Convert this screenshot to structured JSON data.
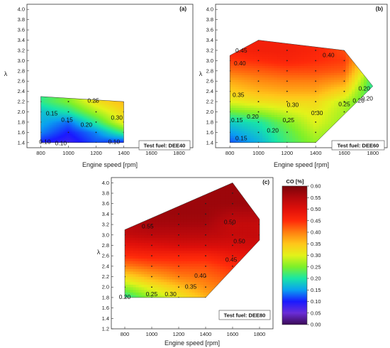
{
  "colorbar": {
    "title": "CO [%]",
    "ticks": [
      "0.00",
      "0.05",
      "0.10",
      "0.15",
      "0.20",
      "0.25",
      "0.30",
      "0.35",
      "0.40",
      "0.45",
      "0.50",
      "0.55",
      "0.60"
    ],
    "range": [
      0,
      0.6
    ],
    "stops": [
      {
        "v": 0.0,
        "c": "#3b0a55"
      },
      {
        "v": 0.05,
        "c": "#6a2dd6"
      },
      {
        "v": 0.1,
        "c": "#1a1aff"
      },
      {
        "v": 0.15,
        "c": "#0aa0f0"
      },
      {
        "v": 0.2,
        "c": "#19e6a6"
      },
      {
        "v": 0.25,
        "c": "#7cf02a"
      },
      {
        "v": 0.3,
        "c": "#e3f21a"
      },
      {
        "v": 0.35,
        "c": "#ffc61a"
      },
      {
        "v": 0.4,
        "c": "#ff7f10"
      },
      {
        "v": 0.45,
        "c": "#ff2a0a"
      },
      {
        "v": 0.5,
        "c": "#e0100a"
      },
      {
        "v": 0.55,
        "c": "#b3080c"
      },
      {
        "v": 0.6,
        "c": "#7a040a"
      }
    ]
  },
  "chart_data": [
    {
      "type": "heatmap",
      "panel": "(a)",
      "fuel_label": "Test fuel: DEE40",
      "xlabel": "Engine speed [rpm]",
      "ylabel": "λ",
      "xlim": [
        700,
        1900
      ],
      "ylim": [
        1.3,
        4.1
      ],
      "xticks": [
        "800",
        "1000",
        "1200",
        "1400",
        "1600",
        "1800"
      ],
      "yticks": [
        "1.4",
        "1.6",
        "1.8",
        "2.0",
        "2.2",
        "2.4",
        "2.6",
        "2.8",
        "3.0",
        "3.2",
        "3.4",
        "3.6",
        "3.8",
        "4.0"
      ],
      "region": [
        [
          800,
          1.4
        ],
        [
          1400,
          1.4
        ],
        [
          1400,
          2.2
        ],
        [
          800,
          2.3
        ]
      ],
      "grid_x": [
        800,
        1000,
        1200,
        1400
      ],
      "grid_y": [
        1.4,
        1.6,
        1.8,
        2.0,
        2.2
      ],
      "values": [
        [
          0.1,
          0.08,
          0.12,
          0.1
        ],
        [
          0.14,
          0.1,
          0.14,
          0.22
        ],
        [
          0.16,
          0.13,
          0.21,
          0.31
        ],
        [
          0.17,
          0.2,
          0.27,
          0.33
        ],
        [
          0.21,
          0.25,
          0.32,
          0.36
        ]
      ],
      "contour_labels": [
        {
          "x": 1180,
          "y": 2.22,
          "text": "0.25"
        },
        {
          "x": 880,
          "y": 1.97,
          "text": "0.15"
        },
        {
          "x": 990,
          "y": 1.85,
          "text": "0.15"
        },
        {
          "x": 1130,
          "y": 1.75,
          "text": "0.20"
        },
        {
          "x": 1350,
          "y": 1.89,
          "text": "0.30"
        },
        {
          "x": 830,
          "y": 1.42,
          "text": "0.10"
        },
        {
          "x": 945,
          "y": 1.39,
          "text": "0.10"
        },
        {
          "x": 1330,
          "y": 1.42,
          "text": "0.10"
        }
      ]
    },
    {
      "type": "heatmap",
      "panel": "(b)",
      "fuel_label": "Test fuel: DEE60",
      "xlabel": "Engine speed [rpm]",
      "ylabel": "λ",
      "xlim": [
        700,
        1900
      ],
      "ylim": [
        1.3,
        4.1
      ],
      "xticks": [
        "800",
        "1000",
        "1200",
        "1400",
        "1600",
        "1800"
      ],
      "yticks": [
        "1.4",
        "1.6",
        "1.8",
        "2.0",
        "2.2",
        "2.4",
        "2.6",
        "2.8",
        "3.0",
        "3.2",
        "3.4",
        "3.6",
        "3.8",
        "4.0"
      ],
      "region": [
        [
          800,
          1.4
        ],
        [
          1400,
          1.4
        ],
        [
          1800,
          2.5
        ],
        [
          1600,
          3.2
        ],
        [
          1000,
          3.4
        ],
        [
          800,
          3.1
        ]
      ],
      "grid_x": [
        800,
        1000,
        1200,
        1400,
        1600,
        1800
      ],
      "grid_y": [
        1.4,
        1.6,
        1.8,
        2.0,
        2.2,
        2.4,
        2.6,
        2.8,
        3.0,
        3.2,
        3.4
      ],
      "values": [
        [
          0.12,
          0.16,
          0.22,
          0.26,
          0.24,
          0.2
        ],
        [
          0.15,
          0.18,
          0.23,
          0.28,
          0.25,
          0.2
        ],
        [
          0.18,
          0.2,
          0.25,
          0.3,
          0.26,
          0.21
        ],
        [
          0.24,
          0.26,
          0.29,
          0.31,
          0.27,
          0.21
        ],
        [
          0.3,
          0.32,
          0.33,
          0.33,
          0.28,
          0.21
        ],
        [
          0.34,
          0.36,
          0.37,
          0.37,
          0.33,
          0.2
        ],
        [
          0.37,
          0.39,
          0.4,
          0.4,
          0.38,
          0.21
        ],
        [
          0.41,
          0.42,
          0.43,
          0.43,
          0.42,
          0.25
        ],
        [
          0.44,
          0.45,
          0.46,
          0.45,
          0.44,
          0.3
        ],
        [
          0.46,
          0.47,
          0.47,
          0.46,
          0.43,
          0.32
        ],
        [
          0.47,
          0.47,
          0.47,
          0.46,
          0.43,
          0.32
        ]
      ],
      "contour_labels": [
        {
          "x": 880,
          "y": 3.2,
          "text": "0.45"
        },
        {
          "x": 1490,
          "y": 3.11,
          "text": "0.40"
        },
        {
          "x": 870,
          "y": 2.95,
          "text": "0.40"
        },
        {
          "x": 1740,
          "y": 2.46,
          "text": "0.20"
        },
        {
          "x": 1760,
          "y": 2.26,
          "text": "0.20"
        },
        {
          "x": 1700,
          "y": 2.22,
          "text": "0.20"
        },
        {
          "x": 860,
          "y": 2.33,
          "text": "0.35"
        },
        {
          "x": 1600,
          "y": 2.15,
          "text": "0.25"
        },
        {
          "x": 1240,
          "y": 2.14,
          "text": "0.30"
        },
        {
          "x": 1410,
          "y": 1.98,
          "text": "0.30"
        },
        {
          "x": 960,
          "y": 1.91,
          "text": "0.20"
        },
        {
          "x": 850,
          "y": 1.84,
          "text": "0.15"
        },
        {
          "x": 1210,
          "y": 1.84,
          "text": "0.25"
        },
        {
          "x": 1100,
          "y": 1.64,
          "text": "0.20"
        },
        {
          "x": 880,
          "y": 1.49,
          "text": "0.15"
        }
      ]
    },
    {
      "type": "heatmap",
      "panel": "(c)",
      "fuel_label": "Test fuel: DEE80",
      "xlabel": "Engine speed [rpm]",
      "ylabel": "λ",
      "xlim": [
        700,
        1900
      ],
      "ylim": [
        1.2,
        4.1
      ],
      "xticks": [
        "800",
        "1000",
        "1200",
        "1400",
        "1600",
        "1800"
      ],
      "yticks": [
        "1.2",
        "1.4",
        "1.6",
        "1.8",
        "2.0",
        "2.2",
        "2.4",
        "2.6",
        "2.8",
        "3.0",
        "3.2",
        "3.4",
        "3.6",
        "3.8",
        "4.0"
      ],
      "region": [
        [
          800,
          1.8
        ],
        [
          1400,
          1.8
        ],
        [
          1800,
          2.9
        ],
        [
          1800,
          3.3
        ],
        [
          1600,
          4.0
        ],
        [
          800,
          3.1
        ]
      ],
      "grid_x": [
        800,
        1000,
        1200,
        1400,
        1600,
        1800
      ],
      "grid_y": [
        1.8,
        2.0,
        2.2,
        2.4,
        2.6,
        2.8,
        3.0,
        3.2,
        3.4,
        3.6,
        3.8,
        4.0
      ],
      "values": [
        [
          0.2,
          0.26,
          0.31,
          0.36,
          0.38,
          0.4
        ],
        [
          0.26,
          0.31,
          0.35,
          0.39,
          0.41,
          0.42
        ],
        [
          0.33,
          0.37,
          0.4,
          0.41,
          0.43,
          0.45
        ],
        [
          0.4,
          0.42,
          0.43,
          0.43,
          0.45,
          0.46
        ],
        [
          0.45,
          0.46,
          0.46,
          0.46,
          0.48,
          0.49
        ],
        [
          0.49,
          0.5,
          0.51,
          0.51,
          0.51,
          0.52
        ],
        [
          0.53,
          0.54,
          0.54,
          0.54,
          0.53,
          0.53
        ],
        [
          0.55,
          0.56,
          0.56,
          0.56,
          0.53,
          0.53
        ],
        [
          0.56,
          0.57,
          0.57,
          0.57,
          0.55,
          0.55
        ],
        [
          0.56,
          0.57,
          0.57,
          0.57,
          0.57,
          0.57
        ],
        [
          0.56,
          0.57,
          0.57,
          0.57,
          0.57,
          0.57
        ],
        [
          0.56,
          0.57,
          0.57,
          0.57,
          0.57,
          0.57
        ]
      ],
      "contour_labels": [
        {
          "x": 970,
          "y": 3.17,
          "text": "0.55"
        },
        {
          "x": 1580,
          "y": 3.25,
          "text": "0.50"
        },
        {
          "x": 1650,
          "y": 2.88,
          "text": "0.50"
        },
        {
          "x": 1590,
          "y": 2.53,
          "text": "0.45"
        },
        {
          "x": 1360,
          "y": 2.22,
          "text": "0.40"
        },
        {
          "x": 1290,
          "y": 2.01,
          "text": "0.35"
        },
        {
          "x": 800,
          "y": 1.81,
          "text": "0.20"
        },
        {
          "x": 1000,
          "y": 1.87,
          "text": "0.25"
        },
        {
          "x": 1140,
          "y": 1.87,
          "text": "0.30"
        }
      ]
    }
  ]
}
